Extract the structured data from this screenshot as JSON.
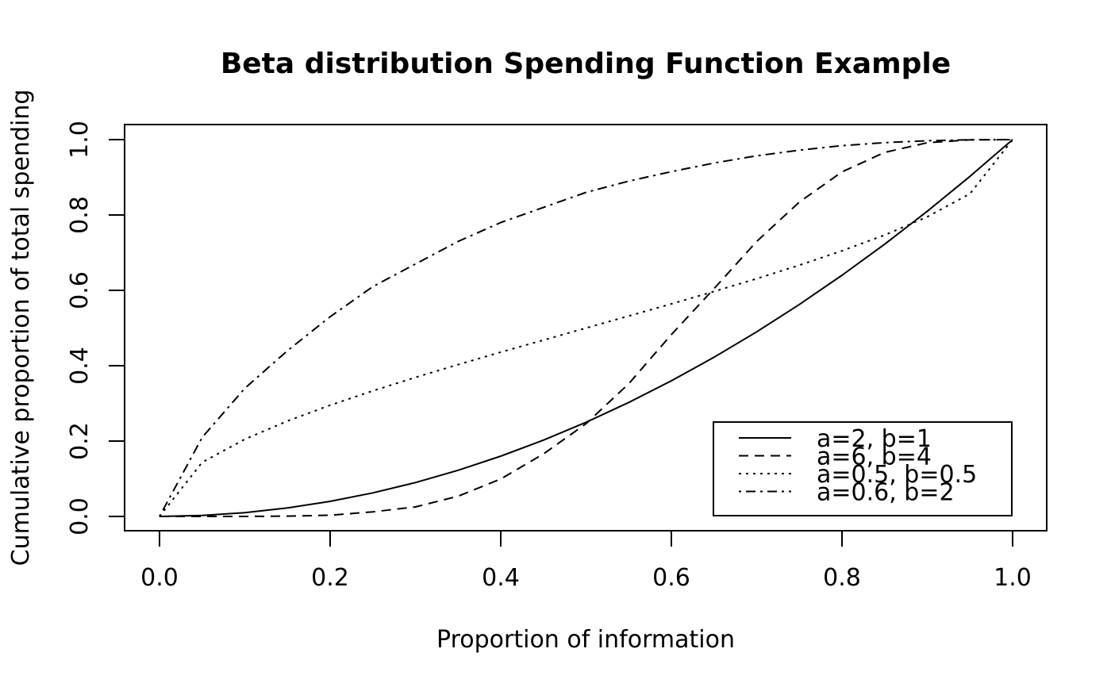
{
  "chart_data": {
    "type": "line",
    "title": "Beta distribution Spending Function Example",
    "xlabel": "Proportion of information",
    "ylabel": "Cumulative proportion of total spending",
    "xlim": [
      0,
      1
    ],
    "ylim": [
      0,
      1
    ],
    "x_ticks": [
      "0.0",
      "0.2",
      "0.4",
      "0.6",
      "0.8",
      "1.0"
    ],
    "y_ticks": [
      "0.0",
      "0.2",
      "0.4",
      "0.6",
      "0.8",
      "1.0"
    ],
    "grid": false,
    "legend_position": "bottom-right",
    "x": [
      0.0,
      0.05,
      0.1,
      0.15,
      0.2,
      0.25,
      0.3,
      0.35,
      0.4,
      0.45,
      0.5,
      0.55,
      0.6,
      0.65,
      0.7,
      0.75,
      0.8,
      0.85,
      0.9,
      0.95,
      1.0
    ],
    "series": [
      {
        "name": "a=2, b=1",
        "line_style": "solid",
        "values": [
          0.0,
          0.0025,
          0.01,
          0.0225,
          0.04,
          0.0625,
          0.09,
          0.1225,
          0.16,
          0.2025,
          0.25,
          0.3025,
          0.36,
          0.4225,
          0.49,
          0.5625,
          0.64,
          0.7225,
          0.81,
          0.9025,
          1.0
        ]
      },
      {
        "name": "a=6, b=4",
        "line_style": "dashed",
        "values": [
          0.0,
          0.0,
          0.0001,
          0.0008,
          0.0031,
          0.0123,
          0.0253,
          0.0536,
          0.0994,
          0.1658,
          0.2461,
          0.3522,
          0.4826,
          0.6047,
          0.7297,
          0.8343,
          0.9144,
          0.9661,
          0.9917,
          0.9994,
          1.0
        ]
      },
      {
        "name": "a=0.5, b=0.5",
        "line_style": "dotted",
        "values": [
          0.0,
          0.1436,
          0.2048,
          0.2532,
          0.2952,
          0.3333,
          0.369,
          0.403,
          0.4359,
          0.4681,
          0.5,
          0.5319,
          0.5641,
          0.597,
          0.631,
          0.6667,
          0.7048,
          0.7468,
          0.7952,
          0.8564,
          1.0
        ]
      },
      {
        "name": "a=0.6, b=2",
        "line_style": "dotdash",
        "values": [
          0.0,
          0.21,
          0.34,
          0.44,
          0.53,
          0.61,
          0.67,
          0.73,
          0.78,
          0.82,
          0.86,
          0.89,
          0.915,
          0.938,
          0.957,
          0.972,
          0.984,
          0.992,
          0.997,
          0.9995,
          1.0
        ]
      }
    ]
  }
}
